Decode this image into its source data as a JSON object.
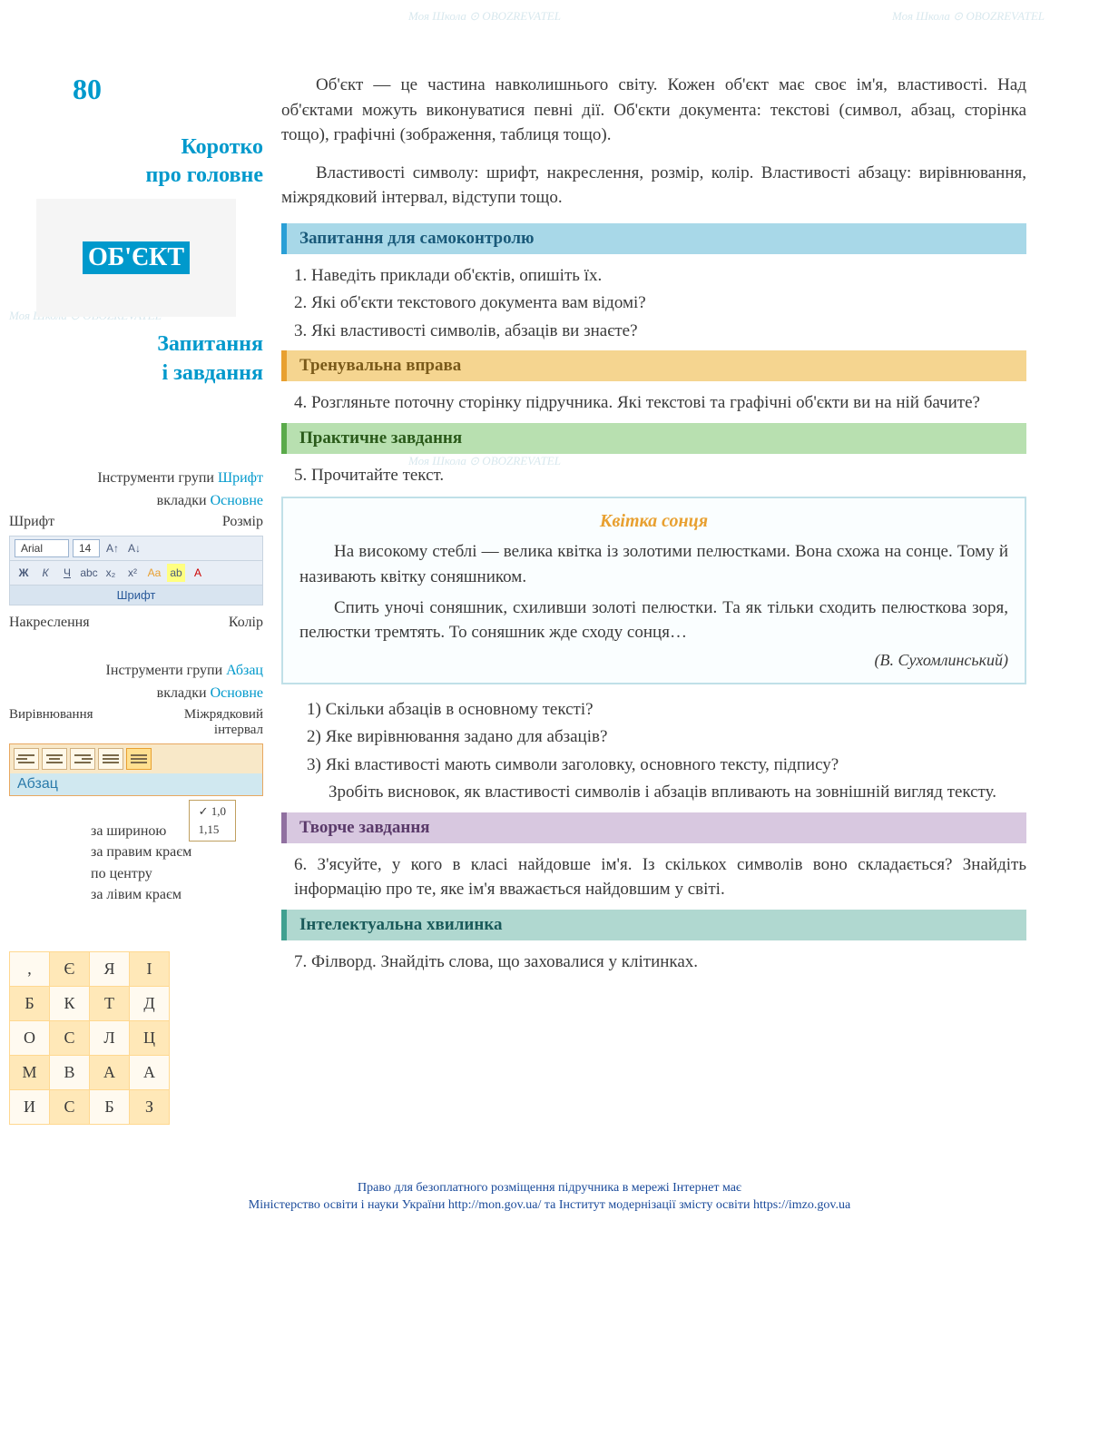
{
  "page_number": "80",
  "watermark_text": "Моя Школа ⊙ OBOZREVATEL",
  "sidebar": {
    "heading1_line1": "Коротко",
    "heading1_line2": "про головне",
    "wordcloud_main": "ОБ'ЄКТ",
    "heading2_line1": "Запитання",
    "heading2_line2": "і завдання",
    "font_group_label_pre": "Інструменти групи ",
    "font_group_label_hl": "Шрифт",
    "tab_label_pre": "вкладки ",
    "tab_label_hl": "Основне",
    "font_callout_left": "Шрифт",
    "font_callout_right": "Розмір",
    "font_name": "Arial",
    "font_size": "14",
    "font_toolbar_caption": "Шрифт",
    "font_callout2_left": "Накреслення",
    "font_callout2_right": "Колір",
    "para_group_label_pre": "Інструменти групи ",
    "para_group_label_hl": "Абзац",
    "para_callout_left": "Вирівнювання",
    "para_callout_right_line1": "Міжрядковий",
    "para_callout_right_line2": "інтервал",
    "para_caption": "Абзац",
    "spacing_opt1": "1,0",
    "spacing_opt2": "1,15",
    "align_label1": "за шириною",
    "align_label2": "за правим краєм",
    "align_label3": "по центру",
    "align_label4": "за лівим краєм",
    "grid": {
      "rows": [
        [
          ",",
          "Є",
          "Я",
          "І"
        ],
        [
          "Б",
          "К",
          "Т",
          "Д"
        ],
        [
          "О",
          "С",
          "Л",
          "Ц"
        ],
        [
          "М",
          "В",
          "А",
          "А"
        ],
        [
          "И",
          "С",
          "Б",
          "З"
        ]
      ]
    }
  },
  "main": {
    "p1": "Об'єкт — це частина навколишнього світу. Кожен об'єкт має своє ім'я, властивості. Над об'єктами можуть виконуватися певні дії. Об'єкти документа: текстові (символ, абзац, сторінка тощо), графічні (зображення, таблиця тощо).",
    "p2": "Властивості символу: шрифт, накреслення, розмір, колір. Властивості абзацу: вирівнювання, міжрядковий інтервал, відступи тощо.",
    "h_selfcheck": "Запитання для самоконтролю",
    "q1": "1. Наведіть приклади об'єктів, опишіть їх.",
    "q2": "2. Які об'єкти текстового документа вам відомі?",
    "q3": "3. Які властивості символів, абзаців ви знаєте?",
    "h_training": "Тренувальна вправа",
    "q4": "4. Розгляньте поточну сторінку підручника. Які текстові та графічні об'єкти ви на ній бачите?",
    "h_practical": "Практичне завдання",
    "q5": "5. Прочитайте текст.",
    "story_title": "Квітка сонця",
    "story_p1": "На високому стеблі — велика квітка із золотими пелюстками. Вона схожа на сонце. Тому й називають квітку соняшником.",
    "story_p2": "Спить уночі соняшник, схиливши золоті пелюстки. Та як тільки сходить пелюсткова зоря, пелюстки тремтять. То соняшник жде сходу сонця…",
    "story_author": "(В. Сухомлинський)",
    "sub_q1": "1) Скільки абзаців в основному тексті?",
    "sub_q2": "2) Яке вирівнювання задано для абзаців?",
    "sub_q3": "3) Які властивості мають символи заголовку, основного тексту, підпису?",
    "conclusion": "Зробіть висновок, як властивості символів і абзаців впливають на зовнішній вигляд тексту.",
    "h_creative": "Творче завдання",
    "q6": "6. З'ясуйте, у кого в класі найдовше ім'я. Із скількох символів воно складається? Знайдіть інформацію про те, яке ім'я вважається найдовшим у світі.",
    "h_intellectual": "Інтелектуальна хвилинка",
    "q7": "7. Філворд. Знайдіть слова, що заховалися у клітинках."
  },
  "footer": {
    "line1": "Право для безоплатного розміщення підручника в мережі Інтернет має",
    "line2": "Міністерство освіти і науки України http://mon.gov.ua/ та Інститут модернізації змісту освіти https://imzo.gov.ua"
  },
  "colors": {
    "accent_blue": "#0099cc",
    "bar_blue_bg": "#a8d8e8",
    "bar_orange_bg": "#f5d590",
    "bar_green_bg": "#b8e0b0",
    "bar_purple_bg": "#d8c8e0",
    "story_title_color": "#e8a030"
  }
}
